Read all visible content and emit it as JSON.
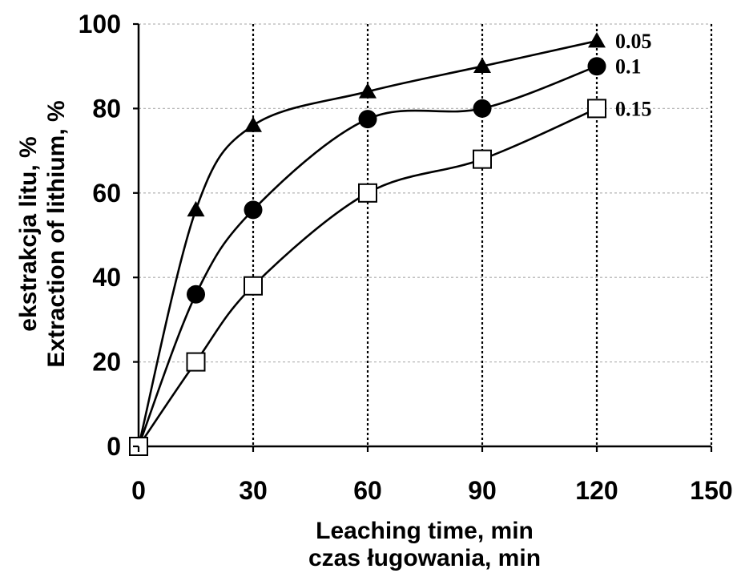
{
  "chart_data": {
    "type": "line",
    "xlabel": [
      "Leaching time, min",
      "czas ługowania, min"
    ],
    "ylabel": [
      "ekstrakcja litu, %",
      "Extraction of lithium, %"
    ],
    "xlim": [
      0,
      150
    ],
    "ylim": [
      0,
      100
    ],
    "xticks": [
      "0",
      "30",
      "60",
      "90",
      "120",
      "150"
    ],
    "yticks": [
      "0",
      "20",
      "40",
      "60",
      "80",
      "100"
    ],
    "grid": "dashed vertical and horizontal",
    "series": [
      {
        "name": "0.05",
        "marker": "filled-triangle",
        "x": [
          0,
          15,
          30,
          60,
          90,
          120
        ],
        "y": [
          0,
          56,
          76,
          84,
          90,
          96
        ]
      },
      {
        "name": "0.1",
        "marker": "filled-circle",
        "x": [
          0,
          15,
          30,
          60,
          90,
          120
        ],
        "y": [
          0,
          36,
          56,
          77.5,
          80,
          90
        ]
      },
      {
        "name": "0.15",
        "marker": "open-square",
        "x": [
          0,
          15,
          30,
          60,
          90,
          120
        ],
        "y": [
          0,
          20,
          38,
          60,
          68,
          80
        ]
      }
    ]
  }
}
